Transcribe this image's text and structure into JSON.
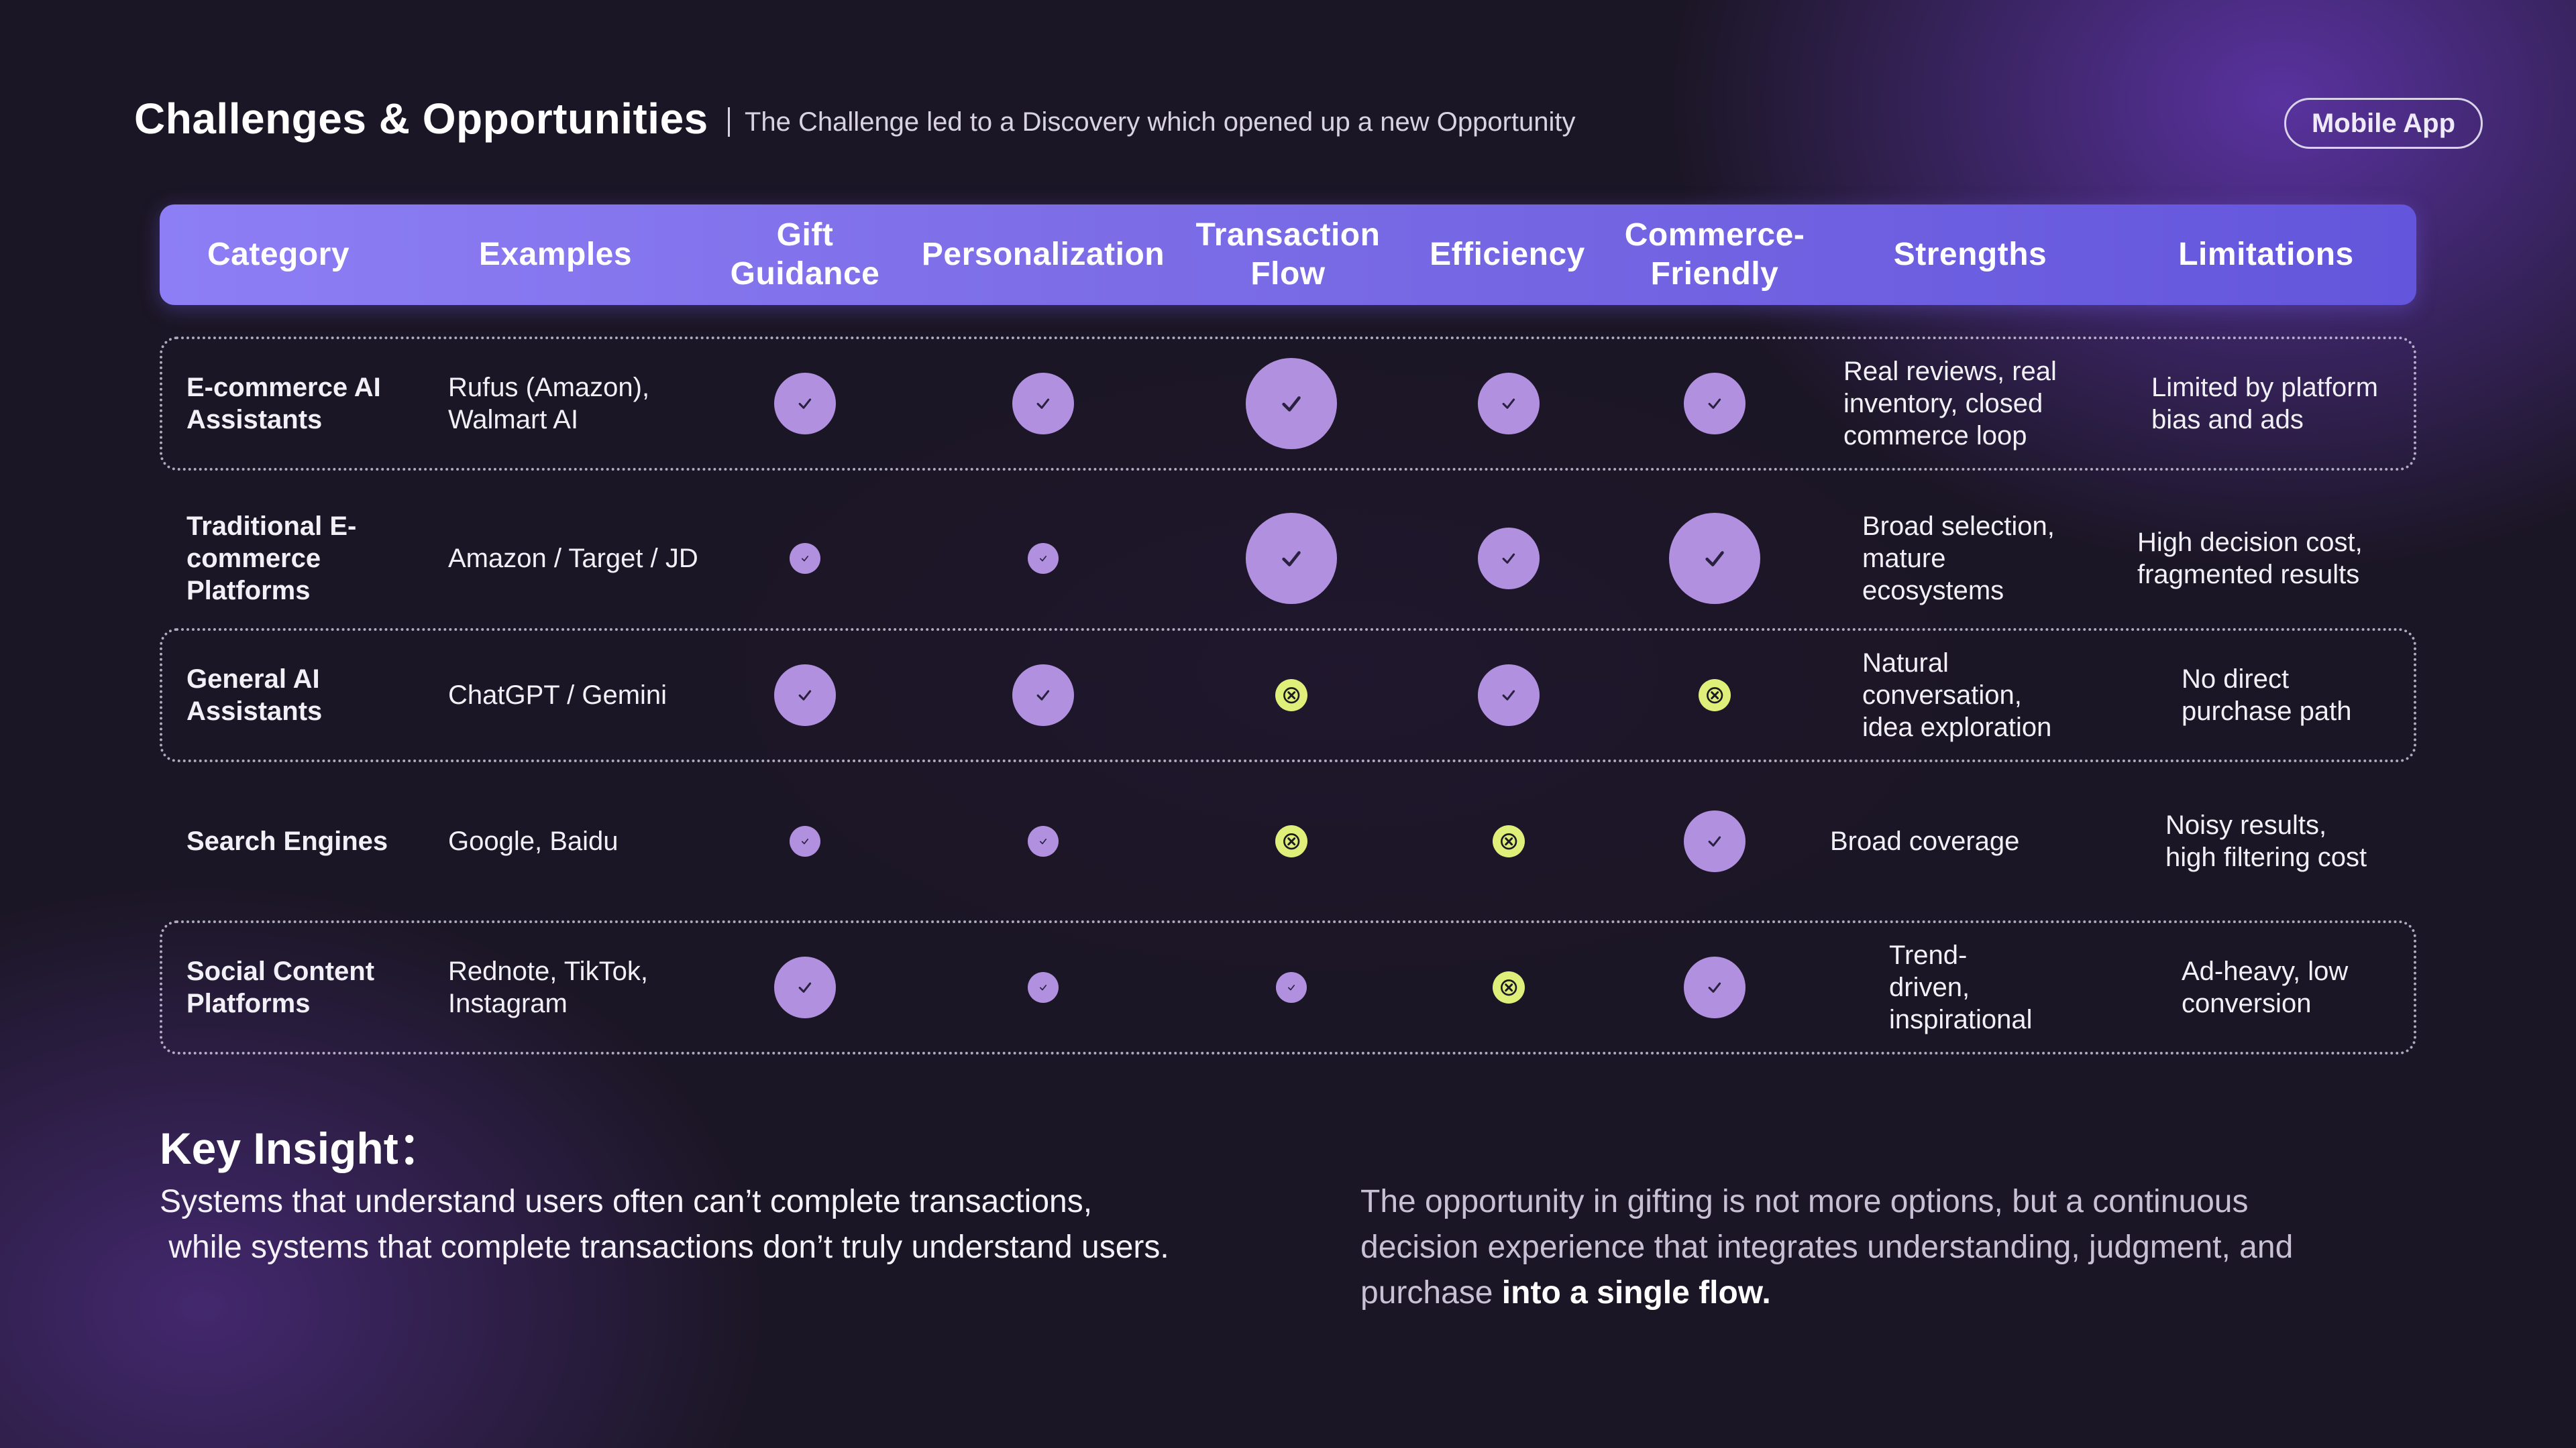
{
  "header": {
    "title": "Challenges & Opportunities",
    "subtitle": "The Challenge led to a Discovery which opened up a new Opportunity",
    "badge": "Mobile App"
  },
  "table": {
    "columns": [
      {
        "lines": [
          "Category"
        ]
      },
      {
        "lines": [
          "Examples"
        ]
      },
      {
        "lines": [
          "Gift",
          "Guidance"
        ]
      },
      {
        "lines": [
          "Personalization"
        ]
      },
      {
        "lines": [
          "Transaction",
          "Flow"
        ]
      },
      {
        "lines": [
          "Efficiency"
        ]
      },
      {
        "lines": [
          "Commerce-",
          "Friendly"
        ]
      },
      {
        "lines": [
          "Strengths"
        ]
      },
      {
        "lines": [
          "Limitations"
        ]
      }
    ],
    "rows": [
      {
        "category": [
          "E-commerce AI",
          "Assistants"
        ],
        "examples": [
          "Rufus (Amazon),",
          "Walmart AI"
        ],
        "strengths": [
          "Real reviews, real",
          "inventory, closed",
          "commerce loop"
        ],
        "limitations": [
          "Limited by platform",
          "bias and ads"
        ],
        "marks": [
          {
            "type": "check",
            "level": "medium"
          },
          {
            "type": "check",
            "level": "medium"
          },
          {
            "type": "check",
            "level": "high"
          },
          {
            "type": "check",
            "level": "medium"
          },
          {
            "type": "check",
            "level": "medium"
          }
        ],
        "framed": true
      },
      {
        "category": [
          "Traditional E-",
          "commerce",
          "Platforms"
        ],
        "examples": [
          "Amazon / Target / JD"
        ],
        "strengths": [
          "Broad selection,",
          "mature",
          "ecosystems"
        ],
        "limitations": [
          "High decision cost,",
          "fragmented results"
        ],
        "marks": [
          {
            "type": "check",
            "level": "low"
          },
          {
            "type": "check",
            "level": "low"
          },
          {
            "type": "check",
            "level": "high"
          },
          {
            "type": "check",
            "level": "medium"
          },
          {
            "type": "check",
            "level": "high"
          }
        ],
        "framed": false
      },
      {
        "category": [
          "General AI",
          "Assistants"
        ],
        "examples": [
          "ChatGPT / Gemini"
        ],
        "strengths": [
          "Natural",
          "conversation,",
          "idea exploration"
        ],
        "limitations": [
          "No direct",
          "purchase path"
        ],
        "marks": [
          {
            "type": "check",
            "level": "medium"
          },
          {
            "type": "check",
            "level": "medium"
          },
          {
            "type": "cross",
            "level": "none"
          },
          {
            "type": "check",
            "level": "medium"
          },
          {
            "type": "cross",
            "level": "none"
          }
        ],
        "framed": true
      },
      {
        "category": [
          "Search Engines"
        ],
        "examples": [
          "Google, Baidu"
        ],
        "strengths": [
          "Broad coverage"
        ],
        "limitations": [
          "Noisy results,",
          "high filtering cost"
        ],
        "marks": [
          {
            "type": "check",
            "level": "low"
          },
          {
            "type": "check",
            "level": "low"
          },
          {
            "type": "cross",
            "level": "none"
          },
          {
            "type": "cross",
            "level": "none"
          },
          {
            "type": "check",
            "level": "medium"
          }
        ],
        "framed": false
      },
      {
        "category": [
          "Social Content",
          "Platforms"
        ],
        "examples": [
          "Rednote, TikTok,",
          "Instagram"
        ],
        "strengths": [
          "Trend-",
          "driven,",
          "inspirational"
        ],
        "limitations": [
          "Ad-heavy, low",
          "conversion"
        ],
        "marks": [
          {
            "type": "check",
            "level": "medium"
          },
          {
            "type": "check",
            "level": "low"
          },
          {
            "type": "check",
            "level": "low"
          },
          {
            "type": "cross",
            "level": "none"
          },
          {
            "type": "check",
            "level": "medium"
          }
        ],
        "framed": true
      }
    ]
  },
  "insight": {
    "title": "Key Insight：",
    "left_lines": [
      "Systems that understand users often can’t complete transactions,",
      " while systems that complete transactions don’t truly understand users."
    ],
    "right_lines": [
      "The opportunity in gifting is not more options, but a continuous",
      "decision experience that integrates understanding, judgment, and"
    ],
    "right_last_prefix": "purchase ",
    "right_last_bold": "into a single flow."
  },
  "colors": {
    "check_fill": "#b190e0",
    "cross_fill": "#dff07a",
    "header_start": "#8d7ef5",
    "header_end": "#6456dc"
  }
}
